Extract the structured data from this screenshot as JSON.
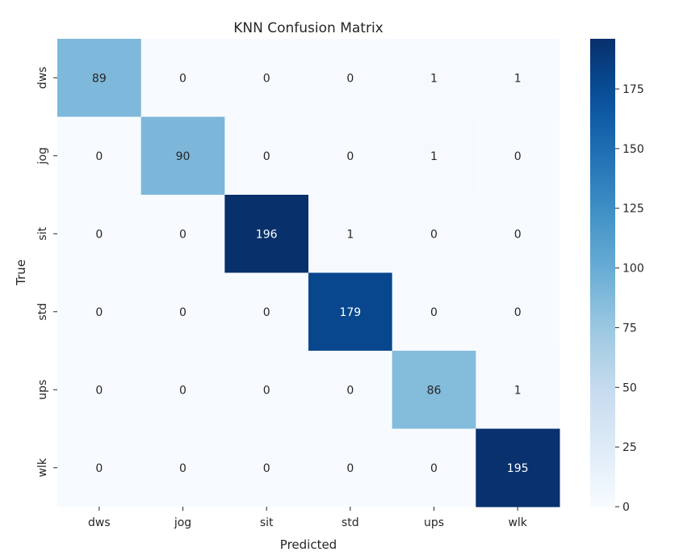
{
  "chart_data": {
    "type": "heatmap",
    "title": "KNN Confusion Matrix",
    "xlabel": "Predicted",
    "ylabel": "True",
    "x_categories": [
      "dws",
      "jog",
      "sit",
      "std",
      "ups",
      "wlk"
    ],
    "y_categories": [
      "dws",
      "jog",
      "sit",
      "std",
      "ups",
      "wlk"
    ],
    "values": [
      [
        89,
        0,
        0,
        0,
        1,
        1
      ],
      [
        0,
        90,
        0,
        0,
        1,
        0
      ],
      [
        0,
        0,
        196,
        1,
        0,
        0
      ],
      [
        0,
        0,
        0,
        179,
        0,
        0
      ],
      [
        0,
        0,
        0,
        0,
        86,
        1
      ],
      [
        0,
        0,
        0,
        0,
        0,
        195
      ]
    ],
    "colormap": "Blues",
    "color_range": [
      0,
      196
    ],
    "colorbar_ticks": [
      0,
      25,
      50,
      75,
      100,
      125,
      150,
      175
    ],
    "annotations": true
  }
}
